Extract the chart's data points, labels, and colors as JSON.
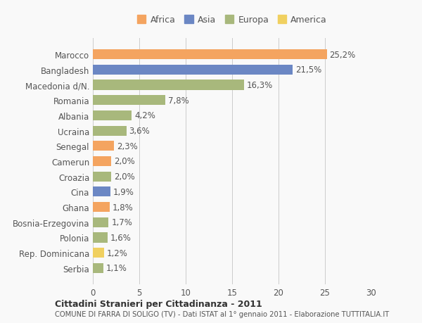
{
  "countries": [
    "Marocco",
    "Bangladesh",
    "Macedonia d/N.",
    "Romania",
    "Albania",
    "Ucraina",
    "Senegal",
    "Camerun",
    "Croazia",
    "Cina",
    "Ghana",
    "Bosnia-Erzegovina",
    "Polonia",
    "Rep. Dominicana",
    "Serbia"
  ],
  "values": [
    25.2,
    21.5,
    16.3,
    7.8,
    4.2,
    3.6,
    2.3,
    2.0,
    2.0,
    1.9,
    1.8,
    1.7,
    1.6,
    1.2,
    1.1
  ],
  "labels": [
    "25,2%",
    "21,5%",
    "16,3%",
    "7,8%",
    "4,2%",
    "3,6%",
    "2,3%",
    "2,0%",
    "2,0%",
    "1,9%",
    "1,8%",
    "1,7%",
    "1,6%",
    "1,2%",
    "1,1%"
  ],
  "continents": [
    "Africa",
    "Asia",
    "Europa",
    "Europa",
    "Europa",
    "Europa",
    "Africa",
    "Africa",
    "Europa",
    "Asia",
    "Africa",
    "Europa",
    "Europa",
    "America",
    "Europa"
  ],
  "continent_colors": {
    "Africa": "#F4A460",
    "Asia": "#6b87c4",
    "Europa": "#a8b87c",
    "America": "#f0d060"
  },
  "legend_order": [
    "Africa",
    "Asia",
    "Europa",
    "America"
  ],
  "legend_colors": [
    "#F4A460",
    "#6b87c4",
    "#a8b87c",
    "#f0d060"
  ],
  "title1": "Cittadini Stranieri per Cittadinanza - 2011",
  "title2": "COMUNE DI FARRA DI SOLIGO (TV) - Dati ISTAT al 1° gennaio 2011 - Elaborazione TUTTITALIA.IT",
  "xlim": [
    0,
    30
  ],
  "xticks": [
    0,
    5,
    10,
    15,
    20,
    25,
    30
  ],
  "background_color": "#f9f9f9",
  "bar_height": 0.65,
  "label_fontsize": 8.5,
  "tick_fontsize": 8.5
}
